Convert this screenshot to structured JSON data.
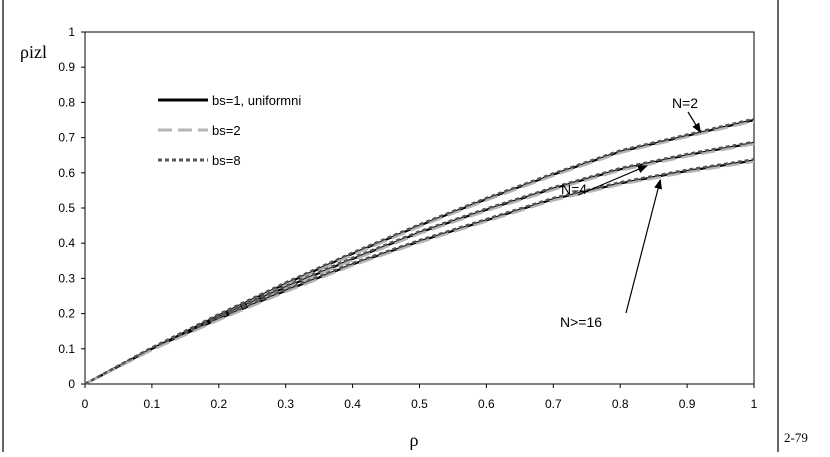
{
  "page": {
    "page_label": "2-79"
  },
  "chart_data": {
    "type": "line",
    "title": "",
    "xlabel": "ρ",
    "ylabel": "ρizl",
    "xlim": [
      0,
      1
    ],
    "ylim": [
      0,
      1
    ],
    "x_ticks": [
      0,
      0.1,
      0.2,
      0.3,
      0.4,
      0.5,
      0.6,
      0.7,
      0.8,
      0.9,
      1
    ],
    "y_ticks": [
      0,
      0.1,
      0.2,
      0.3,
      0.4,
      0.5,
      0.6,
      0.7,
      0.8,
      0.9,
      1
    ],
    "x_tick_labels": [
      "0",
      "0.1",
      "0.2",
      "0.3",
      "0.4",
      "0.5",
      "0.6",
      "0.7",
      "0.8",
      "0.9",
      "1"
    ],
    "y_tick_labels": [
      "0",
      "0.1",
      "0.2",
      "0.3",
      "0.4",
      "0.5",
      "0.6",
      "0.7",
      "0.8",
      "0.9",
      "1"
    ],
    "grid": false,
    "legend_position": "top-left",
    "legend": [
      {
        "label": "bs=1, uniformni",
        "color": "#000000",
        "style": "solid"
      },
      {
        "label": "bs=2",
        "color": "#b4b4b4",
        "style": "long-dash"
      },
      {
        "label": "bs=8",
        "color": "#555555",
        "style": "short-dash"
      }
    ],
    "x": [
      0,
      0.1,
      0.2,
      0.3,
      0.4,
      0.5,
      0.6,
      0.7,
      0.8,
      0.9,
      1
    ],
    "groups": [
      {
        "annotation": "N=2",
        "values": [
          0,
          0.1,
          0.195,
          0.285,
          0.37,
          0.45,
          0.525,
          0.595,
          0.66,
          0.705,
          0.75
        ]
      },
      {
        "annotation": "N=4",
        "values": [
          0,
          0.1,
          0.19,
          0.275,
          0.355,
          0.43,
          0.495,
          0.555,
          0.61,
          0.65,
          0.685
        ]
      },
      {
        "annotation": "N>=16",
        "values": [
          0,
          0.1,
          0.185,
          0.265,
          0.34,
          0.405,
          0.465,
          0.525,
          0.57,
          0.605,
          0.635
        ]
      }
    ],
    "annotations": [
      {
        "text": "N=2",
        "point": [
          0.92,
          0.715
        ]
      },
      {
        "text": "N=4",
        "point": [
          0.84,
          0.62
        ]
      },
      {
        "text": "N>=16",
        "point": [
          0.86,
          0.58
        ]
      }
    ]
  }
}
